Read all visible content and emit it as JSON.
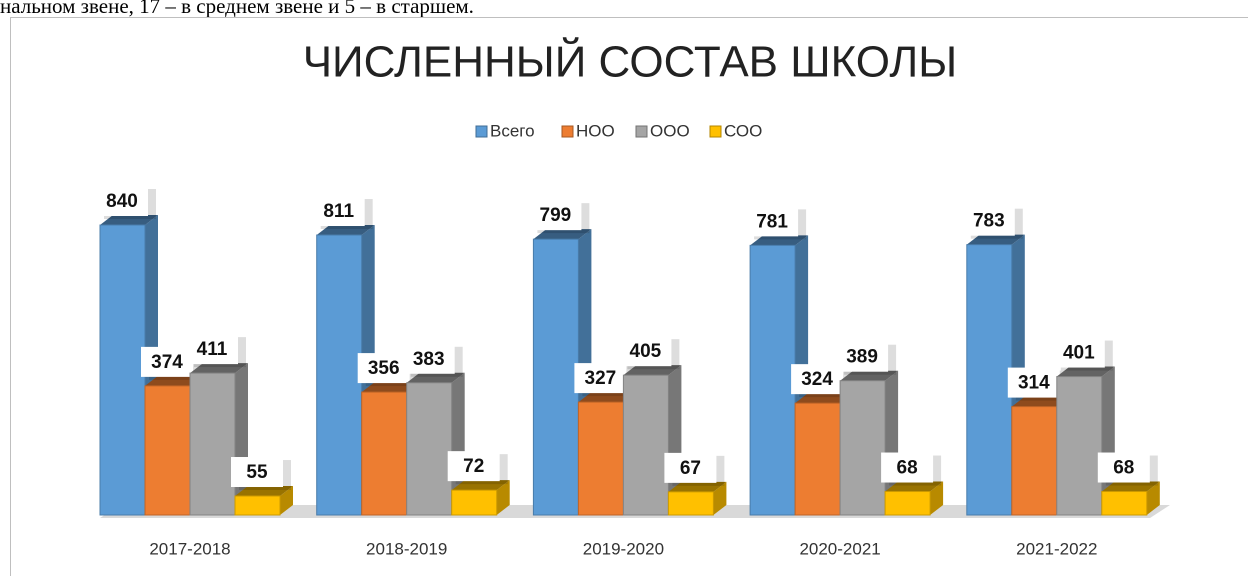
{
  "header_text": "нальном звене, 17 – в среднем звене и 5 – в старшем.",
  "chart_data": {
    "type": "bar3d",
    "title": "ЧИСЛЕННЫЙ СОСТАВ ШКОЛЫ",
    "categories": [
      "2017-2018",
      "2018-2019",
      "2019-2020",
      "2020-2021",
      "2021-2022"
    ],
    "series": [
      {
        "name": "Всего",
        "color": "#5b9bd5",
        "values": [
          840,
          811,
          799,
          781,
          783
        ]
      },
      {
        "name": "НОО",
        "color": "#ed7d31",
        "values": [
          374,
          356,
          327,
          324,
          314
        ]
      },
      {
        "name": "ООО",
        "color": "#a5a5a5",
        "values": [
          411,
          383,
          405,
          389,
          401
        ]
      },
      {
        "name": "СОО",
        "color": "#ffc000",
        "values": [
          55,
          72,
          67,
          68,
          68
        ]
      }
    ],
    "legend": "top"
  }
}
